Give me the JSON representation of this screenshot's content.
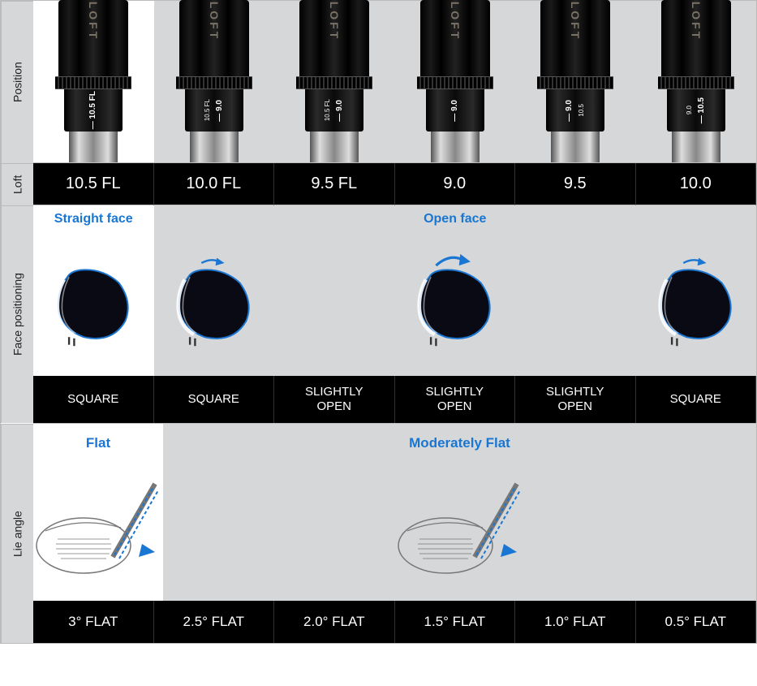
{
  "colors": {
    "accent_blue": "#1976d2",
    "bg_gray": "#d6d7d8",
    "bg_white": "#ffffff",
    "black": "#000000",
    "white_text": "#ffffff",
    "loft_label_color": "#7a7266",
    "outline_gray": "#777777"
  },
  "row_labels": {
    "position": "Position",
    "loft": "Loft",
    "face": "Face positioning",
    "lie": "Lie angle"
  },
  "hosel_label": "LOFT",
  "columns": [
    {
      "highlight": true,
      "sleeve_marks": [
        "— 10.5 FL"
      ],
      "loft": "10.5 FL",
      "face_caption": "Straight face",
      "face_value": "SQUARE",
      "face_arrow": "none",
      "head_shown": true,
      "lie_caption": "Flat",
      "lie_diagram": true,
      "lie_value": "3° FLAT"
    },
    {
      "highlight": false,
      "sleeve_marks": [
        "10.5 FL",
        "— 9.0"
      ],
      "loft": "10.0  FL",
      "face_caption": "",
      "face_value": "SQUARE",
      "face_arrow": "small",
      "head_shown": true,
      "lie_caption": "",
      "lie_diagram": false,
      "lie_value": "2.5° FLAT"
    },
    {
      "highlight": false,
      "sleeve_marks": [
        "10.5 FL",
        "— 9.0"
      ],
      "loft": "9.5 FL",
      "face_caption": "",
      "face_value": "SLIGHTLY OPEN",
      "face_arrow": "none",
      "head_shown": false,
      "lie_caption": "",
      "lie_diagram": false,
      "lie_value": "2.0° FLAT"
    },
    {
      "highlight": false,
      "sleeve_marks": [
        "— 9.0"
      ],
      "loft": "9.0",
      "face_caption": "Open face",
      "face_value": "SLIGHTLY OPEN",
      "face_arrow": "large",
      "head_shown": true,
      "lie_caption": "Moderately Flat",
      "lie_diagram": true,
      "lie_value": "1.5° FLAT"
    },
    {
      "highlight": false,
      "sleeve_marks": [
        "— 9.0",
        "10.5"
      ],
      "loft": "9.5",
      "face_caption": "",
      "face_value": "SLIGHTLY OPEN",
      "face_arrow": "none",
      "head_shown": false,
      "lie_caption": "",
      "lie_diagram": false,
      "lie_value": "1.0° FLAT"
    },
    {
      "highlight": false,
      "sleeve_marks": [
        "9.0",
        "— 10.5"
      ],
      "loft": "10.0",
      "face_caption": "",
      "face_value": "SQUARE",
      "face_arrow": "small",
      "head_shown": true,
      "lie_caption": "",
      "lie_diagram": false,
      "lie_value": "0.5° FLAT"
    }
  ]
}
